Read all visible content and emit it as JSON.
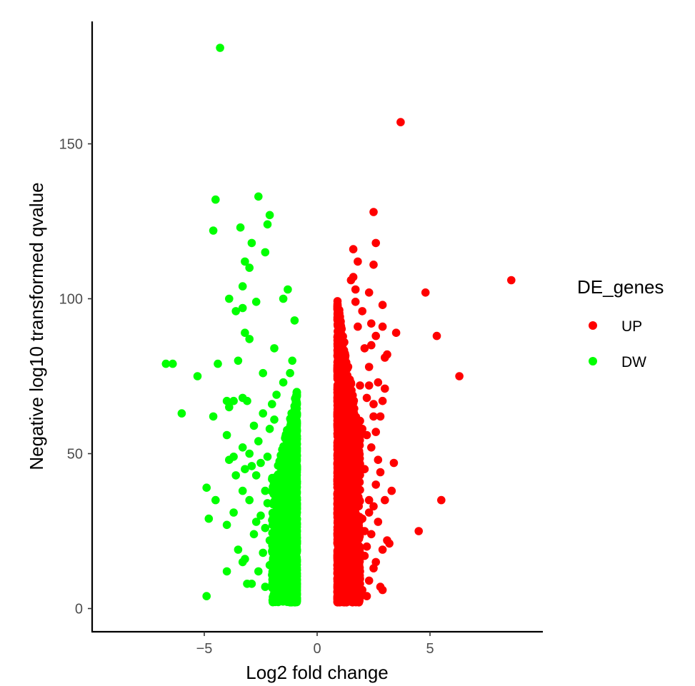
{
  "chart_data": {
    "type": "scatter",
    "xlabel": "Log2 fold change",
    "ylabel": "Negative log10 transformed qvalue",
    "xlim": [
      -10,
      10
    ],
    "ylim": [
      -6,
      190
    ],
    "x_ticks": [
      -5,
      0,
      5
    ],
    "x_tick_labels": [
      "−5",
      "0",
      "5"
    ],
    "y_ticks": [
      0,
      50,
      100,
      150
    ],
    "y_tick_labels": [
      "0",
      "50",
      "100",
      "150"
    ],
    "grid": false,
    "legend": {
      "title": "DE_genes",
      "placement": "right",
      "entries": [
        {
          "label": "UP",
          "color": "#ff0000"
        },
        {
          "label": "DW",
          "color": "#00ff00"
        }
      ]
    },
    "series": [
      {
        "name": "UP",
        "color": "#ff0000",
        "points": [
          [
            3.7,
            157
          ],
          [
            8.6,
            106
          ],
          [
            4.8,
            102
          ],
          [
            5.3,
            88
          ],
          [
            6.3,
            75
          ],
          [
            5.5,
            35
          ],
          [
            4.5,
            25
          ],
          [
            2.5,
            128
          ],
          [
            2.6,
            118
          ],
          [
            1.6,
            116
          ],
          [
            1.8,
            112
          ],
          [
            2.5,
            111
          ],
          [
            1.6,
            107
          ],
          [
            1.5,
            106
          ],
          [
            2.3,
            102
          ],
          [
            1.7,
            103
          ],
          [
            2.9,
            98
          ],
          [
            3.5,
            89
          ],
          [
            2.9,
            91
          ],
          [
            2.4,
            85
          ],
          [
            3.1,
            82
          ],
          [
            3.0,
            81
          ],
          [
            2.7,
            73
          ],
          [
            3.0,
            71
          ],
          [
            2.9,
            67
          ],
          [
            3.4,
            47
          ],
          [
            3.3,
            38
          ],
          [
            3.0,
            35
          ],
          [
            2.7,
            28
          ],
          [
            3.1,
            22
          ],
          [
            3.2,
            21
          ],
          [
            2.9,
            19
          ],
          [
            2.8,
            7
          ],
          [
            2.9,
            6
          ],
          [
            2.3,
            9
          ],
          [
            2.5,
            13
          ],
          [
            2.2,
            4
          ],
          [
            1.9,
            8
          ],
          [
            2.1,
            17
          ],
          [
            1.0,
            2
          ],
          [
            1.3,
            2
          ],
          [
            1.6,
            3
          ],
          [
            2.6,
            15
          ],
          [
            2.2,
            20
          ],
          [
            2.0,
            29
          ],
          [
            2.3,
            35
          ],
          [
            2.6,
            40
          ],
          [
            2.1,
            45
          ],
          [
            2.4,
            52
          ],
          [
            2.0,
            58
          ],
          [
            2.5,
            62
          ],
          [
            2.2,
            68
          ],
          [
            1.9,
            72
          ],
          [
            2.3,
            78
          ],
          [
            2.1,
            84
          ],
          [
            1.8,
            91
          ],
          [
            2.0,
            96
          ],
          [
            1.7,
            99
          ],
          [
            2.4,
            92
          ],
          [
            2.6,
            88
          ],
          [
            2.2,
            56
          ],
          [
            2.7,
            48
          ],
          [
            2.5,
            33
          ],
          [
            2.4,
            24
          ],
          [
            2.8,
            44
          ],
          [
            2.6,
            57
          ],
          [
            2.8,
            62
          ],
          [
            2.5,
            66
          ],
          [
            2.3,
            72
          ],
          [
            2.1,
            25
          ],
          [
            1.9,
            12
          ],
          [
            1.8,
            5
          ],
          [
            2.0,
            6
          ],
          [
            2.3,
            31
          ]
        ],
        "dense_cloud": {
          "x_range": [
            0.9,
            1.9
          ],
          "y_range": [
            2,
            100
          ],
          "peak_x": 1.1,
          "count": 1600,
          "seed": 11
        }
      },
      {
        "name": "DW",
        "color": "#00ff00",
        "points": [
          [
            -4.3,
            181
          ],
          [
            -2.6,
            133
          ],
          [
            -4.5,
            132
          ],
          [
            -2.1,
            127
          ],
          [
            -2.2,
            124
          ],
          [
            -3.4,
            123
          ],
          [
            -4.6,
            122
          ],
          [
            -2.9,
            118
          ],
          [
            -2.3,
            115
          ],
          [
            -3.2,
            112
          ],
          [
            -3.0,
            110
          ],
          [
            -3.3,
            104
          ],
          [
            -1.3,
            103
          ],
          [
            -3.9,
            100
          ],
          [
            -1.5,
            100
          ],
          [
            -2.7,
            99
          ],
          [
            -3.6,
            96
          ],
          [
            -3.3,
            97
          ],
          [
            -1.0,
            93
          ],
          [
            -3.2,
            89
          ],
          [
            -3.0,
            87
          ],
          [
            -1.9,
            84
          ],
          [
            -3.5,
            80
          ],
          [
            -4.4,
            79
          ],
          [
            -1.1,
            80
          ],
          [
            -6.7,
            79
          ],
          [
            -6.4,
            79
          ],
          [
            -5.3,
            75
          ],
          [
            -2.4,
            76
          ],
          [
            -1.2,
            76
          ],
          [
            -1.5,
            73
          ],
          [
            -4.0,
            67
          ],
          [
            -3.3,
            68
          ],
          [
            -3.7,
            67
          ],
          [
            -3.1,
            67
          ],
          [
            -4.6,
            62
          ],
          [
            -6.0,
            63
          ],
          [
            -3.9,
            65
          ],
          [
            -4.0,
            56
          ],
          [
            -3.3,
            52
          ],
          [
            -3.0,
            50
          ],
          [
            -3.7,
            49
          ],
          [
            -3.9,
            48
          ],
          [
            -3.2,
            45
          ],
          [
            -3.6,
            43
          ],
          [
            -2.9,
            46
          ],
          [
            -4.9,
            39
          ],
          [
            -4.5,
            35
          ],
          [
            -3.3,
            38
          ],
          [
            -3.0,
            35
          ],
          [
            -3.7,
            31
          ],
          [
            -4.8,
            29
          ],
          [
            -4.0,
            27
          ],
          [
            -2.8,
            24
          ],
          [
            -3.5,
            19
          ],
          [
            -3.2,
            16
          ],
          [
            -3.3,
            15
          ],
          [
            -4.0,
            12
          ],
          [
            -2.9,
            8
          ],
          [
            -3.1,
            8
          ],
          [
            -4.9,
            4
          ],
          [
            -2.3,
            7
          ],
          [
            -1.8,
            4
          ],
          [
            -2.1,
            58
          ],
          [
            -2.4,
            63
          ],
          [
            -2.6,
            54
          ],
          [
            -2.2,
            49
          ],
          [
            -2.7,
            43
          ],
          [
            -2.3,
            38
          ],
          [
            -2.5,
            30
          ],
          [
            -2.1,
            22
          ],
          [
            -2.4,
            18
          ],
          [
            -2.6,
            12
          ],
          [
            -2.2,
            34
          ],
          [
            -2.0,
            66
          ],
          [
            -1.8,
            69
          ],
          [
            -2.8,
            59
          ],
          [
            -2.5,
            47
          ],
          [
            -2.7,
            28
          ],
          [
            -2.3,
            26
          ],
          [
            -2.1,
            14
          ],
          [
            -1.9,
            61
          ]
        ],
        "dense_cloud": {
          "x_range": [
            -2.0,
            -0.9
          ],
          "y_range": [
            2,
            70
          ],
          "peak_x": -1.1,
          "count": 1500,
          "seed": 23
        }
      }
    ]
  }
}
